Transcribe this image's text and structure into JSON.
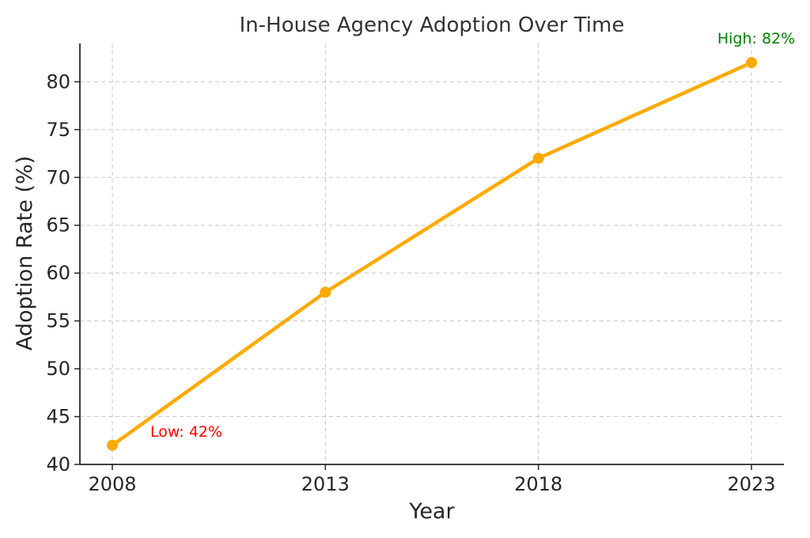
{
  "chart_data": {
    "type": "line",
    "title": "In-House Agency Adoption Over Time",
    "xlabel": "Year",
    "ylabel": "Adoption Rate (%)",
    "x": [
      2008,
      2013,
      2018,
      2023
    ],
    "x_tick_labels": [
      "2008",
      "2013",
      "2018",
      "2023"
    ],
    "series": [
      {
        "name": "Adoption Rate",
        "values": [
          42,
          58,
          72,
          82
        ],
        "color": "#FFAA00"
      }
    ],
    "ylim": [
      40,
      84
    ],
    "y_ticks": [
      40,
      45,
      50,
      55,
      60,
      65,
      70,
      75,
      80
    ],
    "y_tick_labels": [
      "40",
      "45",
      "50",
      "55",
      "60",
      "65",
      "70",
      "75",
      "80"
    ],
    "grid": true,
    "annotations": [
      {
        "text": "Low: 42%",
        "x": 2008,
        "y": 42,
        "color": "#FF0000"
      },
      {
        "text": "High: 82%",
        "x": 2023,
        "y": 82,
        "color": "#008000"
      }
    ]
  }
}
